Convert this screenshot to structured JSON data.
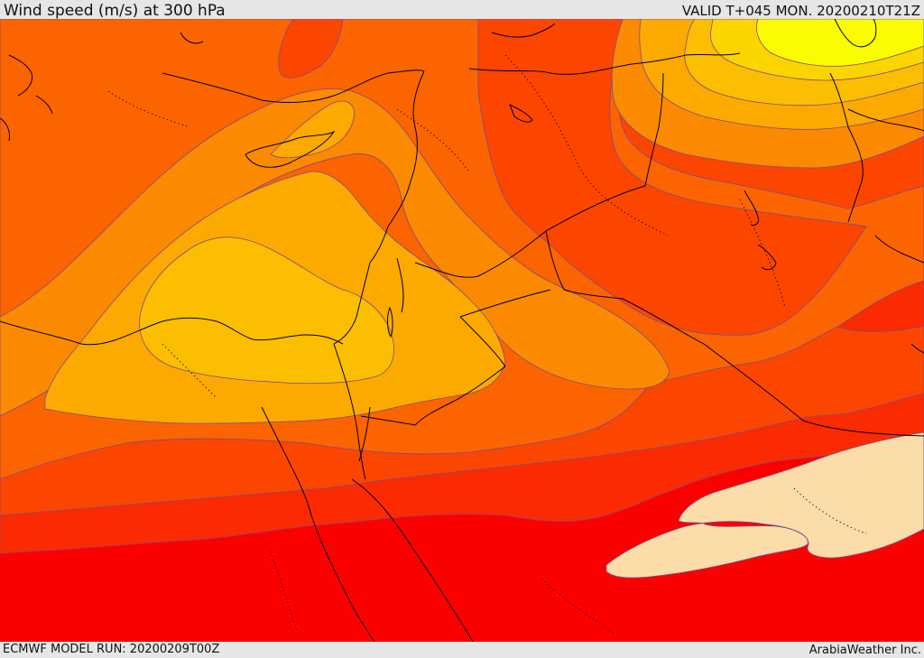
{
  "header": {
    "title": "Wind speed (m/s) at 300 hPa",
    "valid": "VALID T+045 MON. 20200210T21Z"
  },
  "footer": {
    "model_run": "ECMWF MODEL RUN: 20200209T00Z",
    "credit": "ArabiaWeather Inc."
  },
  "map": {
    "variable": "wind speed",
    "level": "300 hPa",
    "units": "m/s",
    "colors": {
      "weakest": "#fcdca8",
      "deep_red": "#fc0000",
      "red": "#fc2a00",
      "red_orange": "#fc4600",
      "orange": "#fc6400",
      "light_orange": "#fc8a00",
      "amber": "#fcaa00",
      "gold": "#fcbe00",
      "yellow_orange": "#fcd400",
      "yellow": "#fcfc00",
      "contour_line": "#7a4a8c",
      "border_line": "#000000"
    }
  }
}
